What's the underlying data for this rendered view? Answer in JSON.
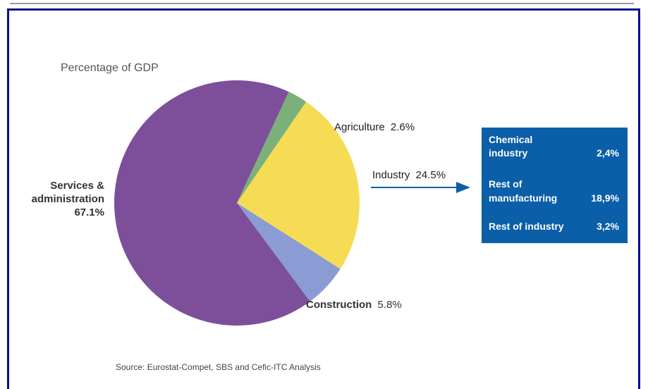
{
  "chart_data": {
    "type": "pie",
    "title": "Percentage of GDP",
    "slices": [
      {
        "label": "Services &",
        "label2": "administration",
        "value_text": "67.1%",
        "value": 67.1,
        "color": "#7d4f9a"
      },
      {
        "label": "Agriculture",
        "value_text": "2.6%",
        "value": 2.6,
        "color": "#7bb07a"
      },
      {
        "label": "Industry",
        "value_text": "24.5%",
        "value": 24.5,
        "color": "#f6dc55"
      },
      {
        "label": "Construction",
        "value_text": "5.8%",
        "value": 5.8,
        "color": "#8b9bd3"
      }
    ],
    "industry_breakdown": {
      "background_color": "#0a5fa8",
      "items": [
        {
          "label_line1": "Chemical",
          "label_line2": "industry",
          "value": "2,4%"
        },
        {
          "label_line1": "Rest of",
          "label_line2": "manufacturing",
          "value": "18,9%"
        },
        {
          "label_line1": "Rest of industry",
          "label_line2": "",
          "value": "3,2%"
        }
      ]
    },
    "source": "Source: Eurostat-Compet, SBS and Cefic-ITC Analysis"
  }
}
